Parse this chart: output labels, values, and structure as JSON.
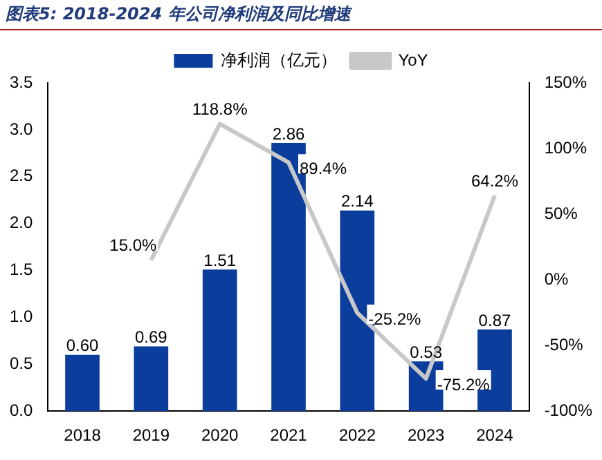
{
  "chart_data": {
    "type": "bar",
    "title": "图表5:  2018-2024 年公司净利润及同比增速",
    "categories": [
      "2018",
      "2019",
      "2020",
      "2021",
      "2022",
      "2023",
      "2024"
    ],
    "series": [
      {
        "name": "净利润（亿元）",
        "color": "#0a3d9c",
        "values": [
          0.6,
          0.69,
          1.51,
          2.86,
          2.14,
          0.53,
          0.87
        ],
        "value_labels": [
          "0.60",
          "0.69",
          "1.51",
          "2.86",
          "2.14",
          "0.53",
          "0.87"
        ]
      },
      {
        "name": "YoY",
        "type": "line",
        "axis": "y2",
        "color": "#c8c8c8",
        "values": [
          null,
          15.0,
          118.8,
          89.4,
          -25.2,
          -75.2,
          64.2
        ],
        "value_labels": [
          null,
          "15.0%",
          "118.8%",
          "89.4%",
          "-25.2%",
          "-75.2%",
          "64.2%"
        ]
      }
    ],
    "ylim": [
      0,
      3.5
    ],
    "yticks": [
      {
        "value": 0,
        "label": "0.0"
      },
      {
        "value": 0.5,
        "label": "0.5"
      },
      {
        "value": 1,
        "label": "1.0"
      },
      {
        "value": 1.5,
        "label": "1.5"
      },
      {
        "value": 2,
        "label": "2.0"
      },
      {
        "value": 2.5,
        "label": "2.5"
      },
      {
        "value": 3,
        "label": "3.0"
      },
      {
        "value": 3.5,
        "label": "3.5"
      }
    ],
    "y2lim": [
      -100,
      150
    ],
    "y2ticks": [
      {
        "value": -100,
        "label": "-100%"
      },
      {
        "value": -50,
        "label": "-50%"
      },
      {
        "value": 0,
        "label": "0%"
      },
      {
        "value": 50,
        "label": "50%"
      },
      {
        "value": 100,
        "label": "100%"
      },
      {
        "value": 150,
        "label": "150%"
      }
    ],
    "grid": false,
    "legend": "top",
    "marker": "none",
    "line_style": "solid"
  }
}
